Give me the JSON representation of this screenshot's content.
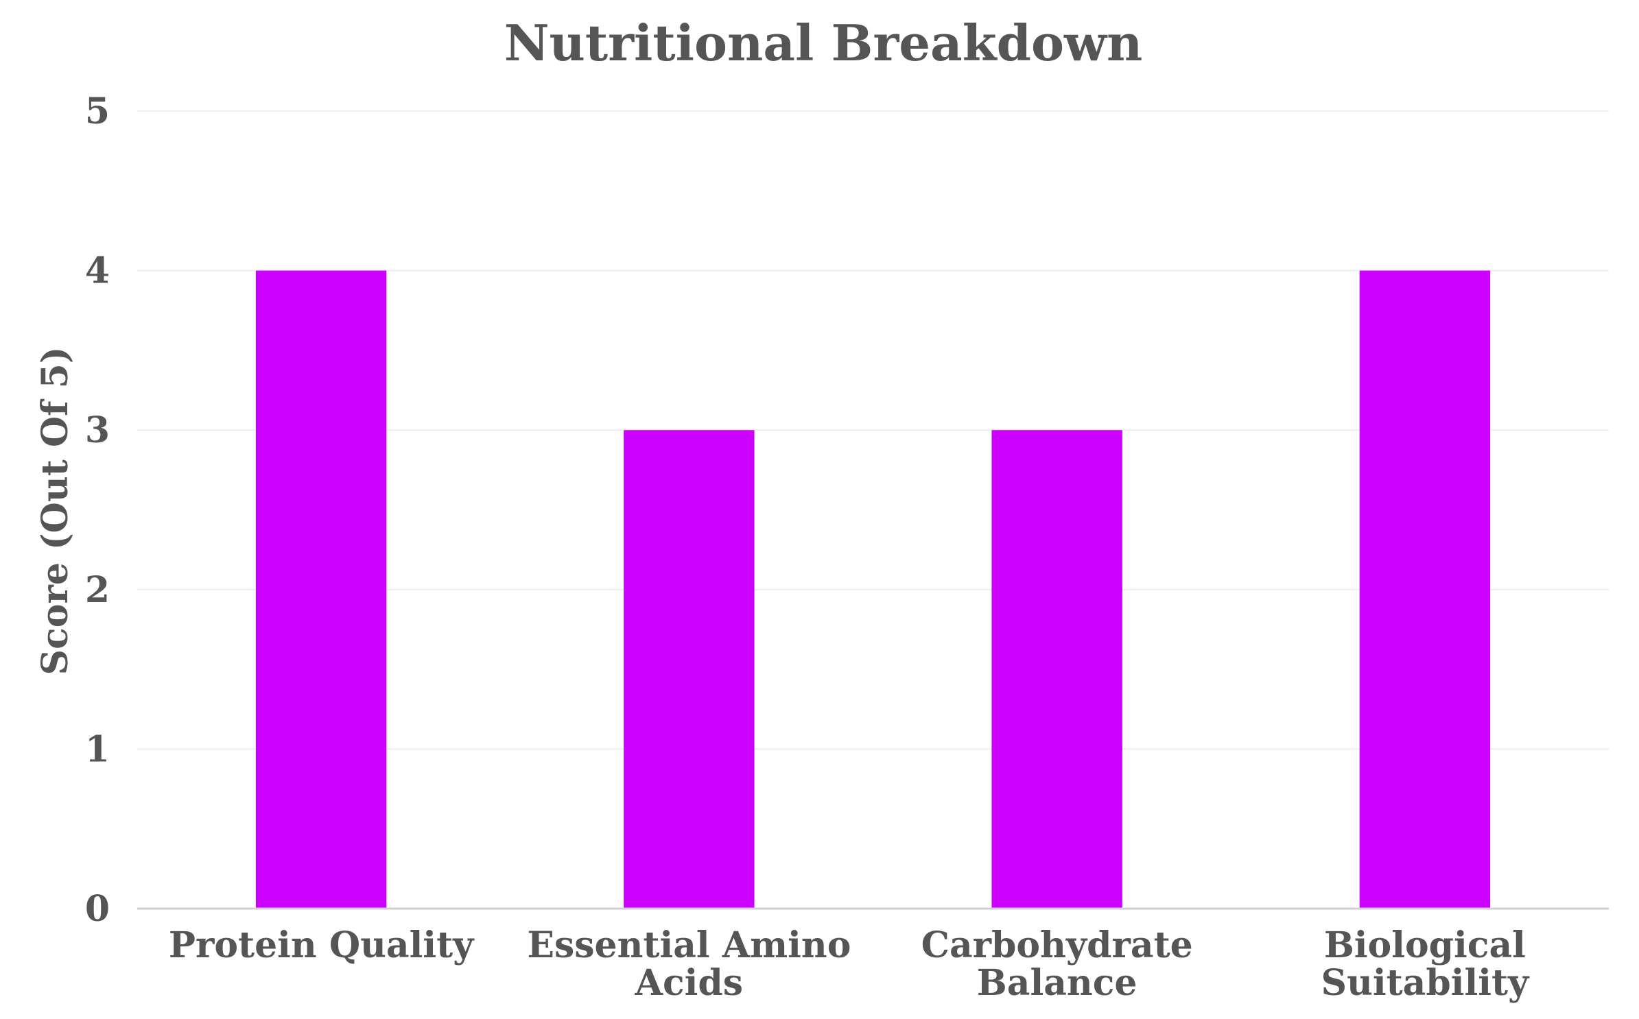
{
  "chart_data": {
    "type": "bar",
    "title": "Nutritional Breakdown",
    "xlabel": "",
    "ylabel": "Score (Out Of 5)",
    "ylim": [
      0,
      5
    ],
    "yticks": [
      "0",
      "1",
      "2",
      "3",
      "4",
      "5"
    ],
    "grid": true,
    "legend": "none",
    "categories": [
      [
        "Protein Quality"
      ],
      [
        "Essential Amino",
        "Acids"
      ],
      [
        "Carbohydrate",
        "Balance"
      ],
      [
        "Biological",
        "Suitability"
      ]
    ],
    "values": [
      4,
      3,
      3,
      4
    ],
    "bar_color": "#cc00ff"
  }
}
